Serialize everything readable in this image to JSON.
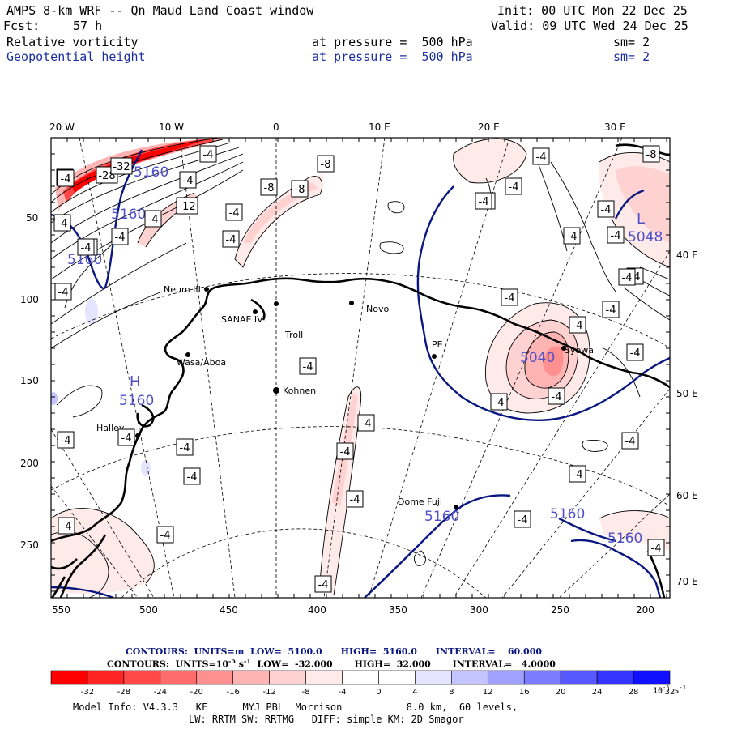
{
  "header": {
    "title": "AMPS 8-km WRF -- Qn Maud Land Coast window",
    "init": "Init: 00 UTC Mon 22 Dec 25",
    "fcst_label": "Fcst:",
    "fcst_value": "57 h",
    "valid": "Valid: 09 UTC Wed 24 Dec 25",
    "field1_name": "Relative vorticity",
    "field1_level": "at pressure =  500 hPa",
    "field1_sm": "sm= 2",
    "field2_name": "Geopotential height",
    "field2_level": "at pressure =  500 hPa",
    "field2_sm": "sm= 2"
  },
  "axes": {
    "top_lon": [
      "20 W",
      "10 W",
      "0",
      "10 E",
      "20 E",
      "30 E"
    ],
    "right_lon": [
      "40 E",
      "50 E",
      "60 E",
      "70 E"
    ],
    "left_ticks": [
      "50",
      "100",
      "150",
      "200",
      "250"
    ],
    "bottom_ticks": [
      "550",
      "500",
      "450",
      "400",
      "350",
      "300",
      "250",
      "200"
    ]
  },
  "stations": [
    "Neum III",
    "SANAE IV",
    "Troll",
    "Novo",
    "Wasa/Aboa",
    "Kohnen",
    "Halley",
    "PE",
    "Syowa",
    "Dome Fuji"
  ],
  "height_labels": [
    "5160",
    "5160",
    "5160",
    "5160",
    "5160",
    "5048",
    "5040",
    "5160",
    "5160"
  ],
  "height_markers": [
    "L",
    "H"
  ],
  "vort_labels": [
    "-4",
    "-28",
    "-32",
    "-4",
    "-4",
    "-4",
    "-12",
    "-8",
    "-8",
    "-8",
    "-4",
    "-4",
    "-4",
    "-4",
    "-4",
    "-4",
    "-4",
    "-4",
    "-4",
    "-8",
    "-4",
    "-4",
    "-4",
    "-4",
    "-4",
    "-4",
    "-4",
    "-4",
    "-4",
    "-4",
    "-4",
    "-4",
    "-4",
    "-4",
    "-4",
    "-4",
    "-4",
    "-4",
    "-4",
    "-4",
    "-4",
    "-4",
    "-4",
    "-4",
    "-4",
    "-4",
    "-4",
    "-4",
    "-4"
  ],
  "contours_info": {
    "line1": "CONTOURS:  UNITS=m  LOW=  5100.0      HIGH=  5160.0      INTERVAL=    60.000",
    "line2_a": "CONTOURS:  UNITS=10",
    "line2_exp": "-5",
    "line2_b": " s",
    "line2_exp2": "-1",
    "line2_c": "  LOW=  -32.000       HIGH=  32.000       INTERVAL=   4.0000"
  },
  "colorbar": {
    "labels": [
      "-32",
      "-28",
      "-24",
      "-20",
      "-16",
      "-12",
      "-8",
      "-4",
      "0",
      "4",
      "8",
      "12",
      "16",
      "20",
      "24",
      "28",
      "32"
    ],
    "unit": "10",
    "unit_exp": "-5",
    "unit_s": " s",
    "unit_exp2": "-1",
    "colors": [
      "#ff0000",
      "#ff2424",
      "#ff4848",
      "#ff6c6c",
      "#ff9090",
      "#ffb4b4",
      "#ffd2d2",
      "#ffeaea",
      "#ffffff",
      "#ffffff",
      "#e4e4ff",
      "#c4c4ff",
      "#a0a0ff",
      "#7c7cff",
      "#5858ff",
      "#3434ff",
      "#1010ff"
    ]
  },
  "footer": {
    "line1": "Model Info: V4.3.3   KF      MYJ PBL  Morrison           8.0 km,  60 levels,",
    "line2": "LW: RRTM SW: RRTMG   DIFF: simple KM: 2D Smagor"
  }
}
